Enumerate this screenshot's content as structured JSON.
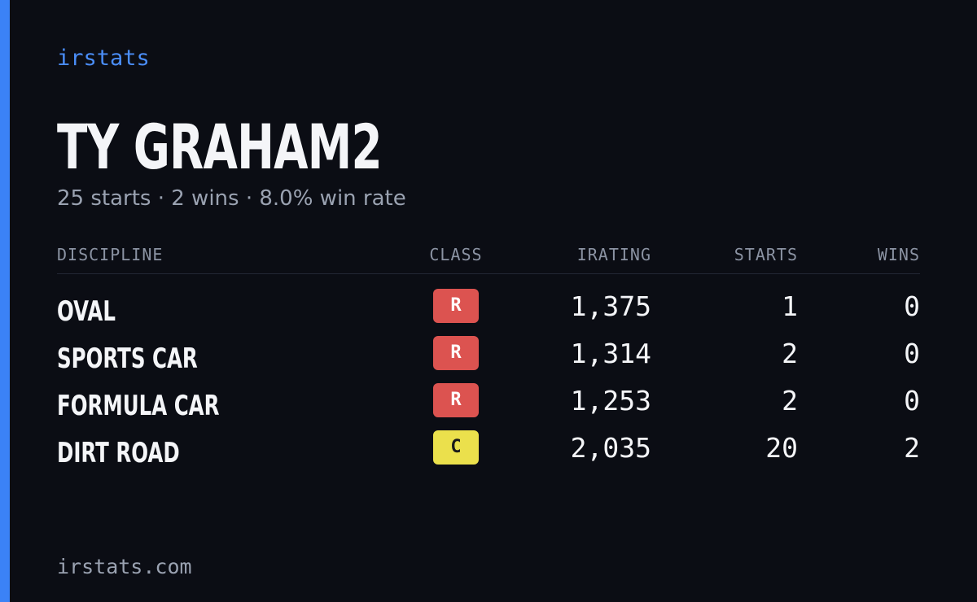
{
  "brand": "irstats",
  "title": "TY GRAHAM2",
  "subtitle": "25 starts · 2 wins · 8.0% win rate",
  "table": {
    "headers": [
      "DISCIPLINE",
      "CLASS",
      "IRATING",
      "STARTS",
      "WINS"
    ],
    "rows": [
      [
        "OVAL",
        "R",
        "1,375",
        "1",
        "0"
      ],
      [
        "SPORTS CAR",
        "R",
        "1,314",
        "2",
        "0"
      ],
      [
        "FORMULA CAR",
        "R",
        "1,253",
        "2",
        "0"
      ],
      [
        "DIRT ROAD",
        "C",
        "2,035",
        "20",
        "2"
      ]
    ],
    "class_colors": {
      "R": "#dc5350",
      "C": "#ebe04c"
    }
  },
  "footer": "irstats.com"
}
